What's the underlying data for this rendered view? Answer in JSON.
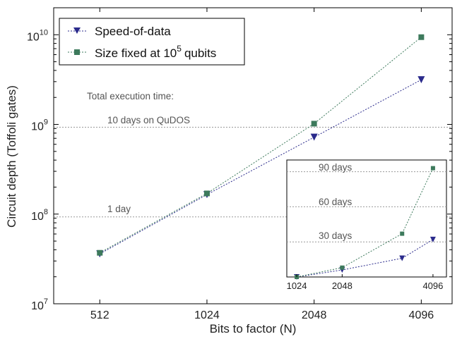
{
  "chart_data": {
    "type": "line",
    "title": "",
    "xlabel": "Bits to factor (N)",
    "ylabel": "Circuit depth (Toffoli gates)",
    "xscale": "log2",
    "yscale": "log10",
    "xlim": [
      380,
      5000
    ],
    "ylim": [
      10000000,
      20000000000
    ],
    "xticks": [
      512,
      1024,
      2048,
      4096
    ],
    "xtick_labels": [
      "512",
      "1024",
      "2048",
      "4096"
    ],
    "yticks": [
      {
        "value": 10000000,
        "base": "10",
        "exp": "7"
      },
      {
        "value": 100000000,
        "base": "10",
        "exp": "8"
      },
      {
        "value": 1000000000,
        "base": "10",
        "exp": "9"
      },
      {
        "value": 10000000000,
        "base": "10",
        "exp": "10"
      }
    ],
    "series": [
      {
        "name": "Speed-of-data",
        "color": "#2b2b8c",
        "marker": "triangle-down",
        "x": [
          512,
          1024,
          2048,
          4096
        ],
        "y": [
          36000000,
          165000000,
          720000000,
          3150000000
        ]
      },
      {
        "name": "Size fixed at 10^5 qubits",
        "legend_base": "Size fixed at 10",
        "legend_exp": "5",
        "legend_tail": "qubits",
        "color": "#3d7a5c",
        "marker": "square",
        "x": [
          512,
          1024,
          2048,
          4096
        ],
        "y": [
          37000000,
          170000000,
          1020000000,
          9400000000
        ]
      }
    ],
    "annotations": {
      "header": "Total execution time:",
      "lines": [
        {
          "label": "10 days on QuDOS",
          "value": 930000000
        },
        {
          "label": "1 day",
          "value": 93000000
        }
      ]
    },
    "inset": {
      "type": "line",
      "xscale": "linear",
      "xlim": [
        800,
        4400
      ],
      "ylim": [
        0,
        100
      ],
      "xticks": [
        1024,
        2048,
        4096
      ],
      "xtick_labels": [
        "1024",
        "2048",
        "4096"
      ],
      "lines": [
        {
          "label": "90 days",
          "value": 90
        },
        {
          "label": "60 days",
          "value": 60
        },
        {
          "label": "30 days",
          "value": 30
        }
      ],
      "series": [
        {
          "name": "Speed-of-data",
          "x": [
            1024,
            2048,
            3400,
            4096
          ],
          "y": [
            0,
            6,
            16,
            32
          ]
        },
        {
          "name": "Size fixed at 10^5 qubits",
          "x": [
            1024,
            2048,
            3400,
            4096
          ],
          "y": [
            0,
            8,
            37,
            93
          ]
        }
      ]
    }
  }
}
